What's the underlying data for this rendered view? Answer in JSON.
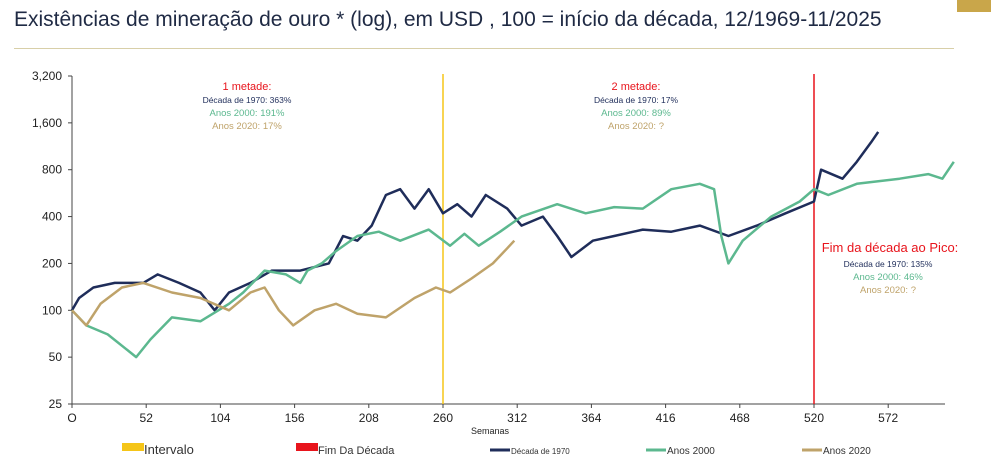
{
  "title": "Existências de mineração de ouro * (log), em USD , 100 = início da década, 12/1969-11/2025",
  "chart_data": {
    "type": "line",
    "xlabel": "Semanas",
    "ylabel": "",
    "y_scale": "log",
    "xlim": [
      0,
      625
    ],
    "ylim": [
      25,
      3200
    ],
    "x_ticks": [
      0,
      52,
      104,
      156,
      208,
      260,
      312,
      364,
      416,
      468,
      520,
      572
    ],
    "x_tick_labels": [
      "O",
      "52",
      "104",
      "156",
      "208",
      "260",
      "312",
      "364",
      "416",
      "468",
      "520",
      "572"
    ],
    "y_ticks": [
      25,
      50,
      100,
      200,
      400,
      800,
      1600,
      3200
    ],
    "y_tick_labels": [
      "25",
      "50",
      "100",
      "200",
      "400",
      "800",
      "1,600",
      "3,200"
    ],
    "grid": false,
    "legend_placement": "bottom",
    "vlines": [
      {
        "name": "Intervalo",
        "x": 260,
        "color": "#f5c518"
      },
      {
        "name": "Fim Da Década",
        "x": 520,
        "color": "#e8141c"
      }
    ],
    "series": [
      {
        "name": "Década de 1970",
        "color": "#1f2d5a",
        "x": [
          0,
          5,
          15,
          30,
          50,
          60,
          75,
          90,
          100,
          110,
          125,
          140,
          160,
          180,
          190,
          200,
          210,
          220,
          230,
          240,
          250,
          260,
          270,
          280,
          290,
          305,
          315,
          330,
          340,
          350,
          365,
          380,
          400,
          420,
          440,
          460,
          480,
          500,
          520,
          525,
          540,
          550,
          560,
          565
        ],
        "y": [
          100,
          120,
          140,
          150,
          150,
          170,
          150,
          130,
          100,
          130,
          150,
          180,
          180,
          200,
          300,
          280,
          350,
          550,
          600,
          450,
          600,
          420,
          480,
          400,
          550,
          450,
          350,
          400,
          300,
          220,
          280,
          300,
          330,
          320,
          350,
          300,
          350,
          420,
          500,
          800,
          700,
          900,
          1200,
          1400
        ]
      },
      {
        "name": "Anos 2000",
        "color": "#5cb88f",
        "x": [
          0,
          10,
          25,
          45,
          55,
          70,
          90,
          110,
          120,
          135,
          150,
          160,
          165,
          175,
          185,
          200,
          215,
          230,
          250,
          265,
          275,
          285,
          300,
          315,
          340,
          360,
          380,
          400,
          420,
          440,
          450,
          455,
          460,
          470,
          490,
          510,
          520,
          530,
          550,
          580,
          600,
          610,
          618
        ],
        "y": [
          100,
          80,
          70,
          50,
          65,
          90,
          85,
          110,
          130,
          180,
          170,
          150,
          180,
          200,
          240,
          300,
          320,
          280,
          330,
          260,
          310,
          260,
          320,
          400,
          480,
          420,
          460,
          450,
          600,
          650,
          600,
          300,
          200,
          280,
          400,
          500,
          600,
          550,
          650,
          700,
          750,
          700,
          900
        ]
      },
      {
        "name": "Anos 2020",
        "color": "#bfa36a",
        "x": [
          0,
          10,
          20,
          35,
          50,
          70,
          90,
          110,
          125,
          135,
          145,
          155,
          170,
          185,
          200,
          220,
          240,
          255,
          265,
          280,
          295,
          305,
          310
        ],
        "y": [
          100,
          80,
          110,
          140,
          150,
          130,
          120,
          100,
          130,
          140,
          100,
          80,
          100,
          110,
          95,
          90,
          120,
          140,
          130,
          160,
          200,
          250,
          280
        ]
      }
    ],
    "annotations": {
      "first_half": {
        "title": "1 metade:",
        "lines": [
          "Década de 1970: 363%",
          "Anos 2000: 191%",
          "Anos 2020: 17%"
        ]
      },
      "second_half": {
        "title": "2 metade:",
        "lines": [
          "Década de 1970: 17%",
          "Anos 2000: 89%",
          "Anos 2020: ?"
        ]
      },
      "peak": {
        "title": "Fim da década ao Pico:",
        "lines": [
          "Década de 1970: 135%",
          "Anos 2000: 46%",
          "Anos 2020: ?"
        ]
      }
    },
    "legend": [
      "Intervalo",
      "Fim Da Década",
      "Década de 1970",
      "Anos 2000",
      "Anos 2020"
    ]
  }
}
